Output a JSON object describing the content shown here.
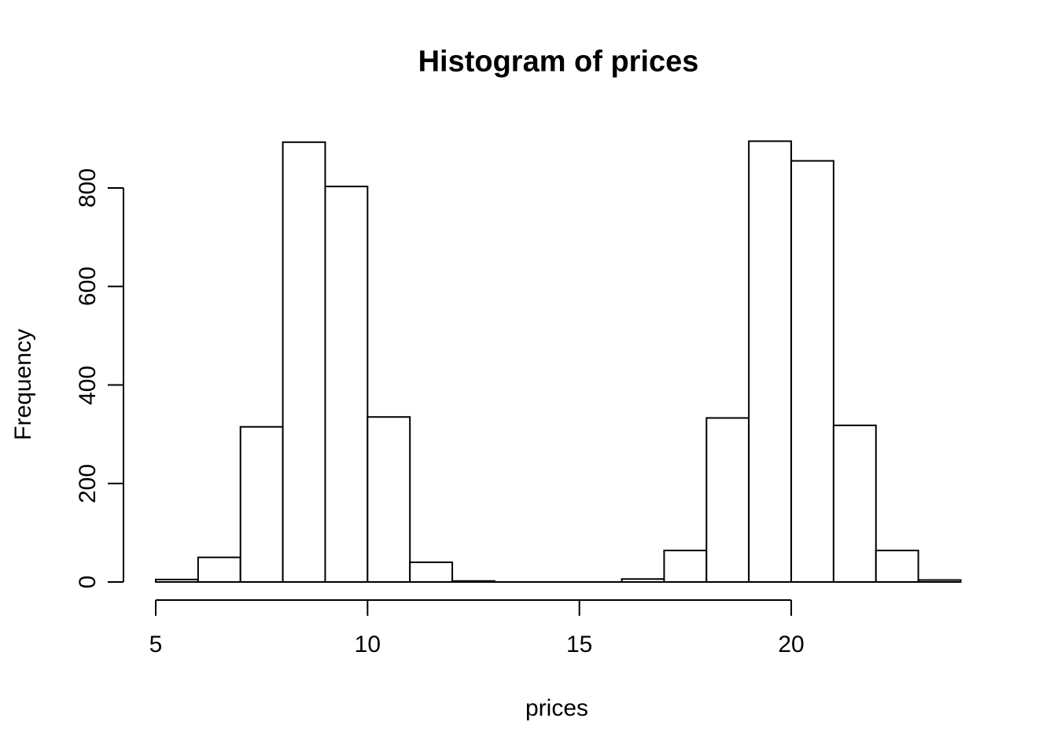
{
  "page": {
    "background": "#ffffff"
  },
  "chart_data": {
    "type": "bar",
    "variant": "histogram",
    "title": "Histogram of prices",
    "xlabel": "prices",
    "ylabel": "Frequency",
    "bin_edges": [
      5,
      6,
      7,
      8,
      9,
      10,
      11,
      12,
      13,
      14,
      15,
      16,
      17,
      18,
      19,
      20,
      21,
      22,
      23,
      24
    ],
    "counts": [
      5,
      50,
      315,
      893,
      803,
      335,
      40,
      2,
      0,
      0,
      0,
      6,
      64,
      333,
      895,
      855,
      318,
      64,
      4
    ],
    "x_ticks": [
      5,
      10,
      15,
      20
    ],
    "y_ticks": [
      0,
      200,
      400,
      600,
      800
    ],
    "xlim": [
      5,
      24
    ],
    "ylim": [
      0,
      800
    ],
    "grid": false,
    "legend": false,
    "bar_fill": "#ffffff",
    "bar_stroke": "#000000",
    "axis_color": "#000000",
    "text_color": "#000000"
  }
}
